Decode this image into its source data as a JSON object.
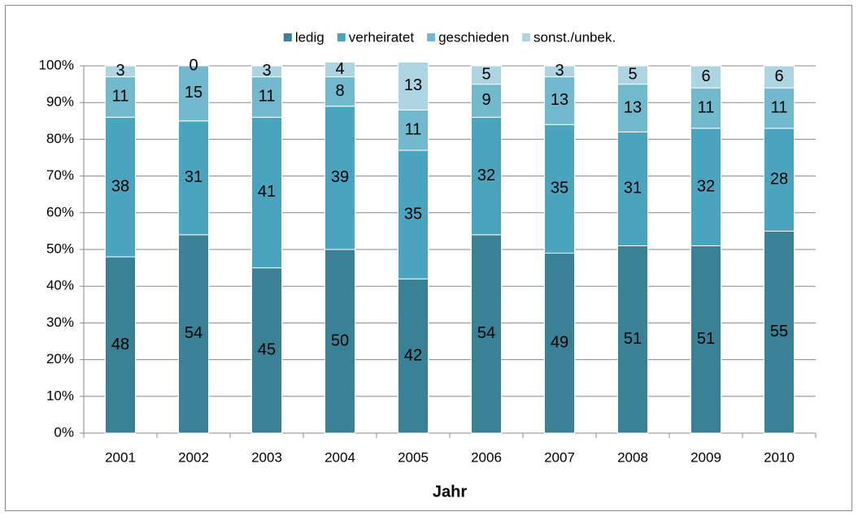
{
  "chart_data": {
    "type": "stacked-bar",
    "x_label": "Jahr",
    "categories": [
      "2001",
      "2002",
      "2003",
      "2004",
      "2005",
      "2006",
      "2007",
      "2008",
      "2009",
      "2010"
    ],
    "series": [
      {
        "name": "ledig",
        "color": "#3a8195",
        "values": [
          48,
          54,
          45,
          50,
          42,
          54,
          49,
          51,
          51,
          55
        ]
      },
      {
        "name": "verheiratet",
        "color": "#4aa4bd",
        "values": [
          38,
          31,
          41,
          39,
          35,
          32,
          35,
          31,
          32,
          28
        ]
      },
      {
        "name": "geschieden",
        "color": "#72b9cd",
        "values": [
          11,
          15,
          11,
          8,
          11,
          9,
          13,
          13,
          11,
          11
        ]
      },
      {
        "name": "sonst./unbek.",
        "color": "#acd4e1",
        "values": [
          3,
          0,
          3,
          4,
          13,
          5,
          3,
          5,
          6,
          6
        ]
      }
    ],
    "ylim": [
      0,
      100
    ],
    "yticks": [
      {
        "value": 0,
        "label": "0%"
      },
      {
        "value": 10,
        "label": "10%"
      },
      {
        "value": 20,
        "label": "20%"
      },
      {
        "value": 30,
        "label": "30%"
      },
      {
        "value": 40,
        "label": "40%"
      },
      {
        "value": 50,
        "label": "50%"
      },
      {
        "value": 60,
        "label": "60%"
      },
      {
        "value": 70,
        "label": "70%"
      },
      {
        "value": 80,
        "label": "80%"
      },
      {
        "value": 90,
        "label": "90%"
      },
      {
        "value": 100,
        "label": "100%"
      }
    ],
    "grid": true,
    "legend": "top"
  }
}
